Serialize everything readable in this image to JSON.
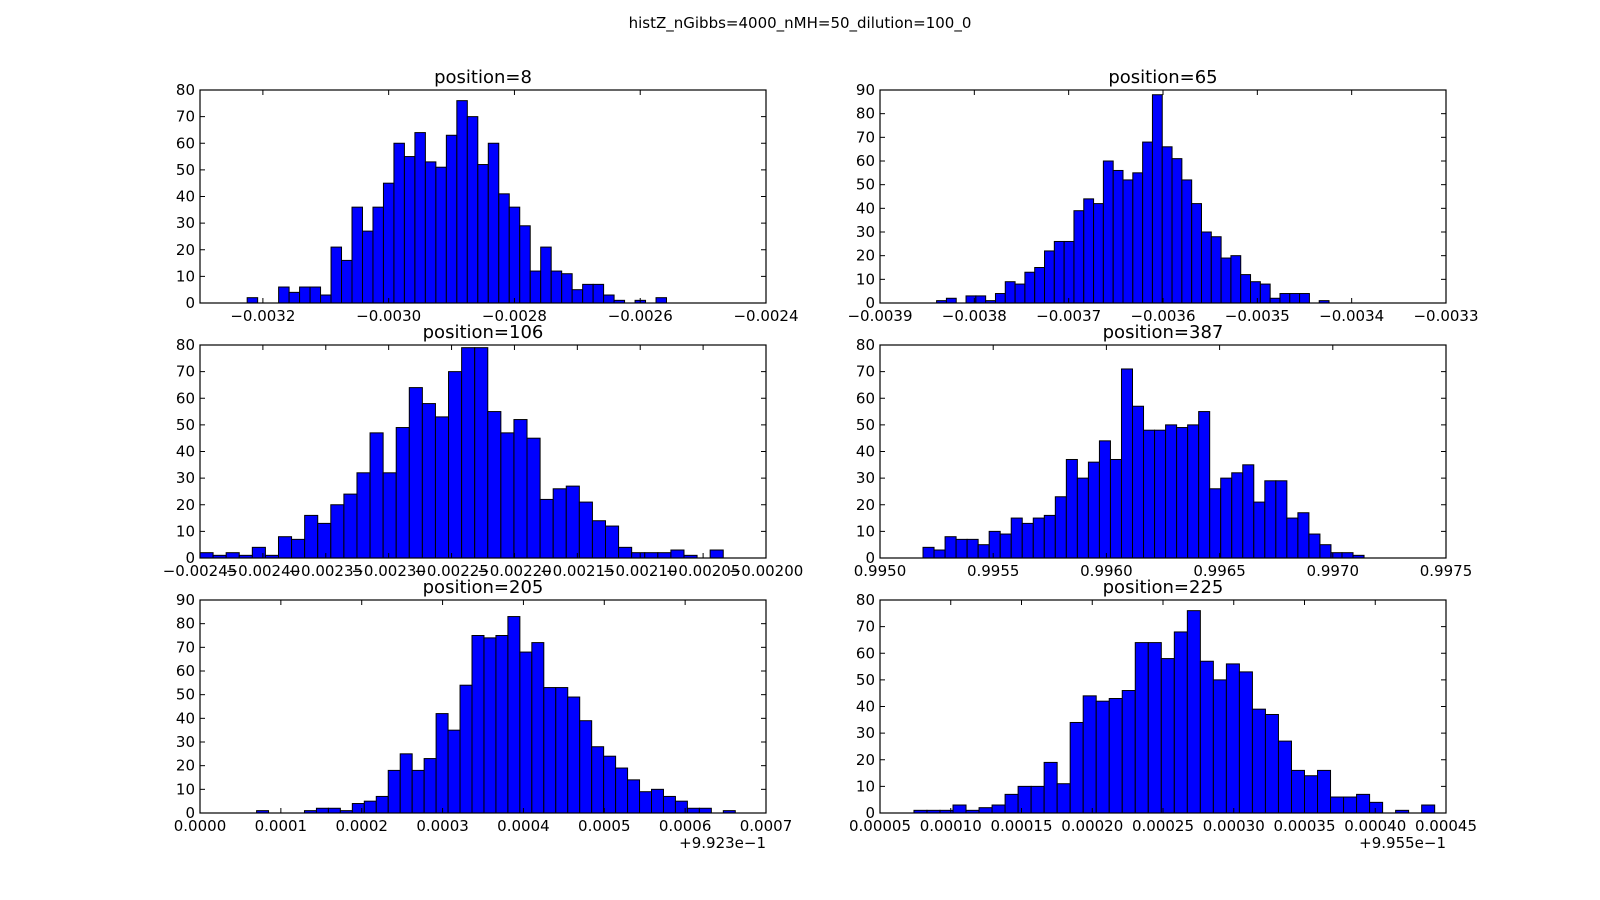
{
  "figure": {
    "title": "histZ_nGibbs=4000_nMH=50_dilution=100_0"
  },
  "colors": {
    "bar_fill": "#0000ff",
    "bar_edge": "#000000",
    "axes": "#000000",
    "background": "#ffffff"
  },
  "chart_data": [
    {
      "type": "bar",
      "title": "position=8",
      "xlim": [
        -0.0033,
        -0.0024
      ],
      "ylim": [
        0,
        80
      ],
      "xtick_values": [
        -0.0032,
        -0.003,
        -0.0028,
        -0.0026,
        -0.0024
      ],
      "xtick_labels": [
        "−0.0032",
        "−0.0030",
        "−0.0028",
        "−0.0026",
        "−0.0024"
      ],
      "ytick_values": [
        0,
        10,
        20,
        30,
        40,
        50,
        60,
        70,
        80
      ],
      "ytick_labels": [
        "0",
        "10",
        "20",
        "30",
        "40",
        "50",
        "60",
        "70",
        "80"
      ],
      "offset_label": "",
      "bin_start": -0.003225,
      "bin_width": 1.667e-05,
      "counts": [
        2,
        0,
        0,
        6,
        4,
        6,
        6,
        3,
        21,
        16,
        36,
        27,
        36,
        45,
        60,
        55,
        64,
        53,
        51,
        63,
        76,
        70,
        52,
        60,
        41,
        36,
        29,
        12,
        21,
        12,
        11,
        5,
        7,
        7,
        3,
        1,
        0,
        1,
        0,
        2
      ]
    },
    {
      "type": "bar",
      "title": "position=65",
      "xlim": [
        -0.0039,
        -0.0033
      ],
      "ylim": [
        0,
        90
      ],
      "xtick_values": [
        -0.0039,
        -0.0038,
        -0.0037,
        -0.0036,
        -0.0035,
        -0.0034,
        -0.0033
      ],
      "xtick_labels": [
        "−0.0039",
        "−0.0038",
        "−0.0037",
        "−0.0036",
        "−0.0035",
        "−0.0034",
        "−0.0033"
      ],
      "ytick_values": [
        0,
        10,
        20,
        30,
        40,
        50,
        60,
        70,
        80,
        90
      ],
      "ytick_labels": [
        "0",
        "10",
        "20",
        "30",
        "40",
        "50",
        "60",
        "70",
        "80",
        "90"
      ],
      "offset_label": "",
      "bin_start": -0.00384,
      "bin_width": 1.04e-05,
      "counts": [
        1,
        2,
        0,
        3,
        3,
        1,
        4,
        9,
        8,
        13,
        15,
        22,
        26,
        26,
        39,
        44,
        42,
        60,
        56,
        52,
        55,
        68,
        88,
        66,
        61,
        52,
        42,
        30,
        28,
        19,
        20,
        12,
        9,
        8,
        2,
        4,
        4,
        4,
        0,
        1
      ]
    },
    {
      "type": "bar",
      "title": "position=106",
      "xlim": [
        -0.00245,
        -0.002
      ],
      "ylim": [
        0,
        80
      ],
      "xtick_values": [
        -0.00245,
        -0.0024,
        -0.00235,
        -0.0023,
        -0.00225,
        -0.0022,
        -0.00215,
        -0.0021,
        -0.00205,
        -0.002
      ],
      "xtick_labels": [
        "−0.00245",
        "−0.00240",
        "−0.00235",
        "−0.00230",
        "−0.00225",
        "−0.00220",
        "−0.00215",
        "−0.00210",
        "−0.00205",
        "−0.00200"
      ],
      "ytick_values": [
        0,
        10,
        20,
        30,
        40,
        50,
        60,
        70,
        80
      ],
      "ytick_labels": [
        "0",
        "10",
        "20",
        "30",
        "40",
        "50",
        "60",
        "70",
        "80"
      ],
      "offset_label": "",
      "bin_start": -0.00245,
      "bin_width": 1.04e-05,
      "counts": [
        2,
        1,
        2,
        1,
        4,
        1,
        8,
        7,
        16,
        13,
        20,
        24,
        32,
        47,
        32,
        49,
        64,
        58,
        53,
        70,
        79,
        79,
        55,
        47,
        52,
        45,
        22,
        26,
        27,
        21,
        14,
        12,
        4,
        2,
        2,
        2,
        3,
        1,
        0,
        3
      ]
    },
    {
      "type": "bar",
      "title": "position=387",
      "xlim": [
        0.995,
        0.9975
      ],
      "ylim": [
        0,
        80
      ],
      "xtick_values": [
        0.995,
        0.9955,
        0.996,
        0.9965,
        0.997,
        0.9975
      ],
      "xtick_labels": [
        "0.9950",
        "0.9955",
        "0.9960",
        "0.9965",
        "0.9970",
        "0.9975"
      ],
      "ytick_values": [
        0,
        10,
        20,
        30,
        40,
        50,
        60,
        70,
        80
      ],
      "ytick_labels": [
        "0",
        "10",
        "20",
        "30",
        "40",
        "50",
        "60",
        "70",
        "80"
      ],
      "offset_label": "",
      "bin_start": 0.99519,
      "bin_width": 4.87e-05,
      "counts": [
        4,
        3,
        8,
        7,
        7,
        5,
        10,
        9,
        15,
        13,
        15,
        16,
        23,
        37,
        30,
        36,
        44,
        37,
        71,
        57,
        48,
        48,
        50,
        49,
        50,
        55,
        26,
        30,
        32,
        35,
        21,
        29,
        29,
        15,
        17,
        9,
        5,
        2,
        2,
        1
      ]
    },
    {
      "type": "bar",
      "title": "position=205",
      "xlim": [
        0.0,
        0.0007
      ],
      "ylim": [
        0,
        90
      ],
      "xtick_values": [
        0.0,
        0.0001,
        0.0002,
        0.0003,
        0.0004,
        0.0005,
        0.0006,
        0.0007
      ],
      "xtick_labels": [
        "0.0000",
        "0.0001",
        "0.0002",
        "0.0003",
        "0.0004",
        "0.0005",
        "0.0006",
        "0.0007"
      ],
      "ytick_values": [
        0,
        10,
        20,
        30,
        40,
        50,
        60,
        70,
        80,
        90
      ],
      "ytick_labels": [
        "0",
        "10",
        "20",
        "30",
        "40",
        "50",
        "60",
        "70",
        "80",
        "90"
      ],
      "offset_label": "+9.923e−1",
      "bin_start": 7e-05,
      "bin_width": 1.48e-05,
      "counts": [
        1,
        0,
        0,
        0,
        1,
        2,
        2,
        1,
        4,
        5,
        7,
        18,
        25,
        18,
        23,
        42,
        35,
        54,
        75,
        74,
        75,
        83,
        68,
        72,
        53,
        53,
        49,
        39,
        28,
        24,
        19,
        14,
        9,
        10,
        7,
        5,
        2,
        2,
        0,
        1
      ]
    },
    {
      "type": "bar",
      "title": "position=225",
      "xlim": [
        5e-05,
        0.00045
      ],
      "ylim": [
        0,
        80
      ],
      "xtick_values": [
        5e-05,
        0.0001,
        0.00015,
        0.0002,
        0.00025,
        0.0003,
        0.00035,
        0.0004,
        0.00045
      ],
      "xtick_labels": [
        "0.00005",
        "0.00010",
        "0.00015",
        "0.00020",
        "0.00025",
        "0.00030",
        "0.00035",
        "0.00040",
        "0.00045"
      ],
      "ytick_values": [
        0,
        10,
        20,
        30,
        40,
        50,
        60,
        70,
        80
      ],
      "ytick_labels": [
        "0",
        "10",
        "20",
        "30",
        "40",
        "50",
        "60",
        "70",
        "80"
      ],
      "offset_label": "+9.955e−1",
      "bin_start": 7.4e-05,
      "bin_width": 9.2e-06,
      "counts": [
        1,
        1,
        1,
        3,
        1,
        2,
        3,
        7,
        10,
        10,
        19,
        11,
        34,
        44,
        42,
        43,
        46,
        64,
        64,
        58,
        68,
        76,
        57,
        50,
        56,
        53,
        39,
        37,
        27,
        16,
        14,
        16,
        6,
        6,
        7,
        4,
        0,
        1,
        0,
        3
      ]
    }
  ]
}
